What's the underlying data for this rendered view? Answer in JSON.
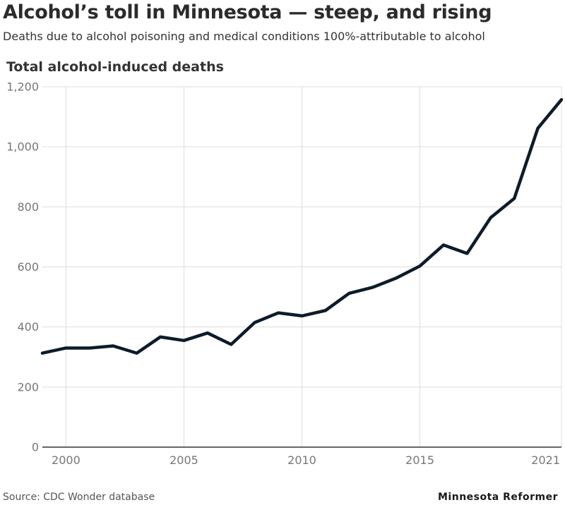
{
  "header": {
    "title": "Alcohol’s toll in Minnesota — steep, and rising",
    "subtitle": "Deaths due to alcohol poisoning and medical conditions 100%-attributable to alcohol"
  },
  "footer": {
    "source": "Source: CDC Wonder database",
    "brand": "Minnesota Reformer"
  },
  "chart_data": {
    "type": "line",
    "title": "Total alcohol-induced deaths",
    "x": [
      1999,
      2000,
      2001,
      2002,
      2003,
      2004,
      2005,
      2006,
      2007,
      2008,
      2009,
      2010,
      2011,
      2012,
      2013,
      2014,
      2015,
      2016,
      2017,
      2018,
      2019,
      2020,
      2021
    ],
    "series": [
      {
        "values": [
          313,
          330,
          330,
          337,
          313,
          367,
          355,
          380,
          342,
          415,
          447,
          437,
          455,
          512,
          532,
          563,
          603,
          673,
          645,
          764,
          828,
          1062,
          1157
        ],
        "color": "#0d1b2a"
      }
    ],
    "xlim": [
      1999,
      2021
    ],
    "ylim": [
      0,
      1200
    ],
    "xticks": [
      2000,
      2005,
      2010,
      2015,
      2021
    ],
    "xtick_labels": [
      "2000",
      "2005",
      "2010",
      "2015",
      "2021"
    ],
    "yticks": [
      0,
      200,
      400,
      600,
      800,
      1000,
      1200
    ],
    "ytick_labels": [
      "0",
      "200",
      "400",
      "600",
      "800",
      "1,000",
      "1,200"
    ],
    "grid": true,
    "xlabel": "",
    "ylabel": ""
  }
}
